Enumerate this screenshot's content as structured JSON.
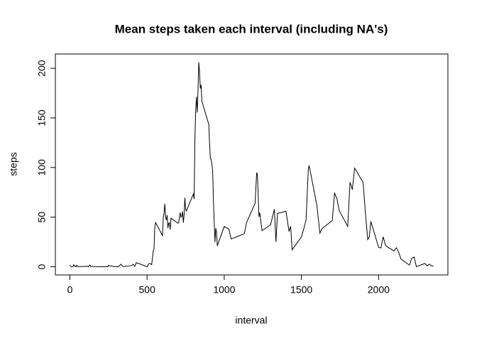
{
  "chart_data": {
    "type": "line",
    "title": "Mean steps taken each interval (including NA's)",
    "x_label": "interval",
    "y_label": "steps",
    "x": [
      0,
      5,
      10,
      15,
      20,
      25,
      30,
      35,
      40,
      45,
      50,
      55,
      100,
      105,
      110,
      115,
      120,
      125,
      130,
      135,
      140,
      145,
      150,
      200,
      215,
      230,
      245,
      250,
      255,
      300,
      315,
      330,
      345,
      400,
      410,
      420,
      430,
      440,
      450,
      500,
      510,
      520,
      530,
      540,
      545,
      550,
      555,
      600,
      605,
      610,
      615,
      620,
      625,
      630,
      635,
      640,
      645,
      650,
      655,
      700,
      705,
      710,
      715,
      720,
      725,
      730,
      735,
      740,
      745,
      750,
      755,
      800,
      805,
      810,
      815,
      820,
      825,
      830,
      835,
      840,
      845,
      850,
      855,
      900,
      905,
      910,
      915,
      920,
      925,
      930,
      935,
      940,
      945,
      950,
      955,
      1000,
      1030,
      1045,
      1100,
      1130,
      1145,
      1200,
      1210,
      1215,
      1225,
      1230,
      1245,
      1300,
      1325,
      1335,
      1345,
      1400,
      1420,
      1430,
      1440,
      1500,
      1515,
      1530,
      1545,
      1550,
      1600,
      1620,
      1635,
      1700,
      1715,
      1720,
      1730,
      1745,
      1800,
      1815,
      1830,
      1845,
      1900,
      1915,
      1930,
      1940,
      1950,
      2000,
      2015,
      2030,
      2045,
      2100,
      2115,
      2130,
      2145,
      2200,
      2215,
      2230,
      2245,
      2300,
      2315,
      2330,
      2345,
      2355
    ],
    "values": [
      1.7,
      0.34,
      0.13,
      0.15,
      0.08,
      2.1,
      0.53,
      0.87,
      0,
      1.47,
      0.3,
      0.13,
      0.32,
      0.68,
      0.15,
      0.34,
      0,
      1.11,
      1.83,
      0.17,
      0.17,
      0.38,
      0.26,
      0,
      0,
      0,
      0,
      1.55,
      0.94,
      0,
      0,
      2.6,
      0.08,
      1.19,
      2.57,
      0.34,
      4.1,
      3.5,
      3.1,
      0,
      3,
      3.3,
      2.1,
      16,
      18.3,
      39.5,
      44.5,
      31.5,
      49.3,
      53.8,
      63.5,
      50,
      47,
      52,
      39,
      44,
      44.2,
      37.4,
      49,
      43.8,
      44.4,
      50.5,
      54.5,
      49.9,
      50.9,
      55.7,
      44.3,
      52.3,
      69.5,
      57.8,
      56.2,
      73.4,
      68.2,
      129.4,
      157.5,
      171.2,
      155.4,
      177.3,
      206.2,
      195.9,
      179.6,
      183.4,
      167,
      143.5,
      124,
      109.1,
      108.1,
      103.7,
      95.97,
      66.2,
      45.2,
      24.8,
      38.8,
      34.98,
      21.06,
      40.6,
      38,
      28,
      31.4,
      33.4,
      44.6,
      63.9,
      94.8,
      92.8,
      50.2,
      54.5,
      36.4,
      42.3,
      58,
      25.1,
      53.7,
      56,
      35.5,
      40.9,
      17.1,
      30,
      38,
      47,
      98.7,
      102.1,
      62.1,
      33.9,
      38.6,
      46.6,
      74.7,
      72,
      68.9,
      56.5,
      40.7,
      85.3,
      77.7,
      99.5,
      84.9,
      53.4,
      27.4,
      30.2,
      45.7,
      19.6,
      18.9,
      30.2,
      21.3,
      15.9,
      19.2,
      14.7,
      7.8,
      1.6,
      8.5,
      9.75,
      0.11,
      3.3,
      0.83,
      2.6,
      0.64,
      1.08
    ],
    "color": "#000000",
    "xlim": [
      -94.2,
      2449.2
    ],
    "ylim": [
      -8.25,
      214.42
    ],
    "xticks": [
      0,
      500,
      1000,
      1500,
      2000
    ],
    "yticks": [
      0,
      50,
      100,
      150,
      200
    ]
  }
}
